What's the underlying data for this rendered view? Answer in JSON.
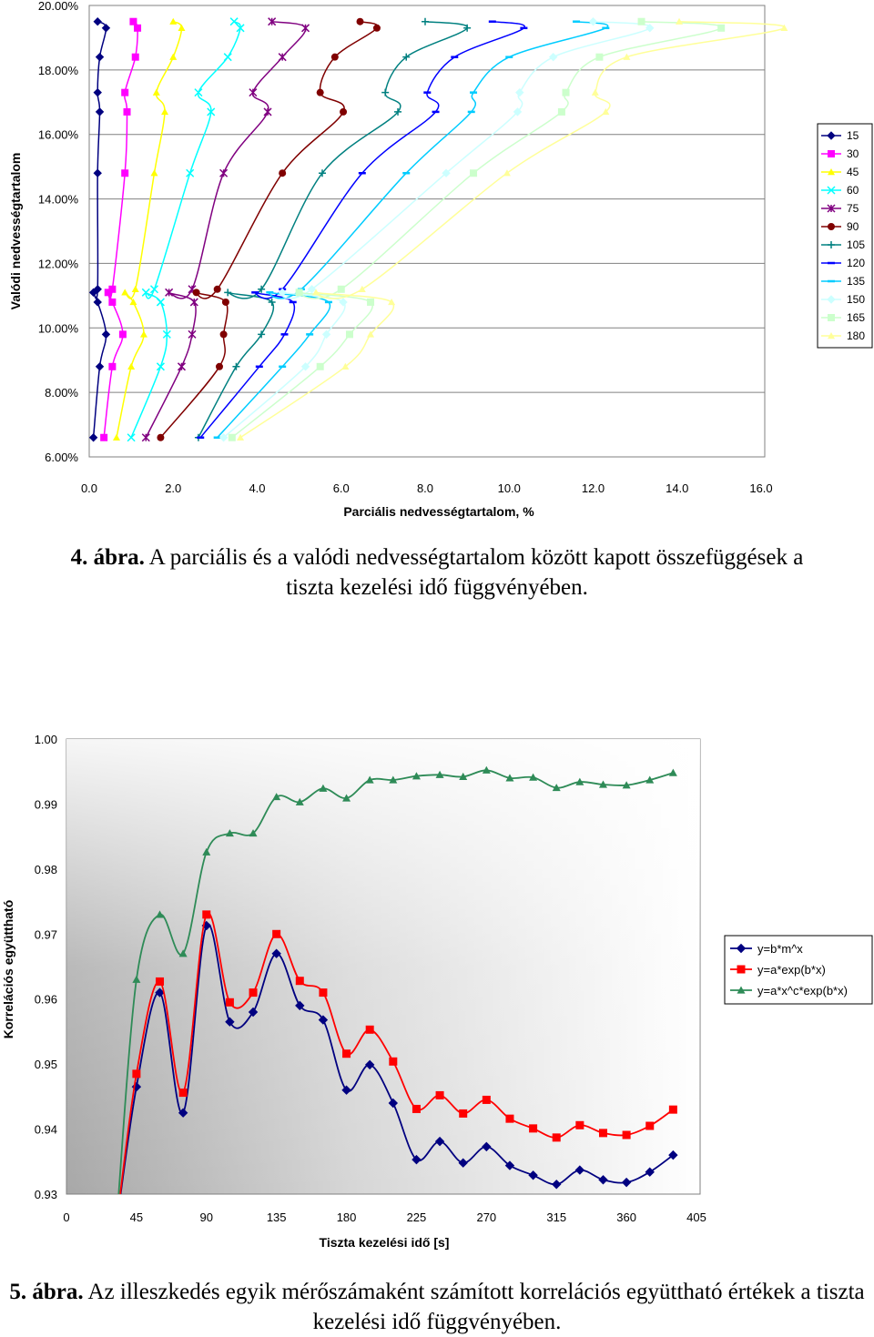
{
  "chart_data": [
    {
      "type": "scatter",
      "xlabel": "Parciális nedvességtartalom, %",
      "ylabel": "Valódi nedvességtartalom",
      "xlim": [
        0,
        16.0
      ],
      "ylim": [
        0.06,
        0.2
      ],
      "x_ticks": [
        "0.0",
        "2.0",
        "4.0",
        "6.0",
        "8.0",
        "10.0",
        "12.0",
        "14.0",
        "16.0"
      ],
      "y_ticks": [
        "6.00%",
        "8.00%",
        "10.00%",
        "12.00%",
        "14.00%",
        "16.00%",
        "18.00%",
        "20.00%"
      ],
      "legend_placement": "right",
      "series": [
        {
          "name": "15",
          "color": "#000080",
          "marker": "diamond",
          "points": [
            [
              0.1,
              0.066
            ],
            [
              0.25,
              0.088
            ],
            [
              0.4,
              0.098
            ],
            [
              0.2,
              0.108
            ],
            [
              0.1,
              0.111
            ],
            [
              0.2,
              0.112
            ],
            [
              0.2,
              0.148
            ],
            [
              0.25,
              0.167
            ],
            [
              0.2,
              0.173
            ],
            [
              0.25,
              0.184
            ],
            [
              0.4,
              0.193
            ],
            [
              0.2,
              0.195
            ]
          ]
        },
        {
          "name": "30",
          "color": "#ff00ff",
          "marker": "square",
          "points": [
            [
              0.35,
              0.066
            ],
            [
              0.55,
              0.088
            ],
            [
              0.8,
              0.098
            ],
            [
              0.55,
              0.108
            ],
            [
              0.45,
              0.111
            ],
            [
              0.55,
              0.112
            ],
            [
              0.85,
              0.148
            ],
            [
              0.9,
              0.167
            ],
            [
              0.85,
              0.173
            ],
            [
              1.1,
              0.184
            ],
            [
              1.15,
              0.193
            ],
            [
              1.05,
              0.195
            ]
          ]
        },
        {
          "name": "45",
          "color": "#ffff00",
          "marker": "triangle",
          "points": [
            [
              0.65,
              0.066
            ],
            [
              1.0,
              0.088
            ],
            [
              1.3,
              0.098
            ],
            [
              1.05,
              0.108
            ],
            [
              0.85,
              0.111
            ],
            [
              1.1,
              0.112
            ],
            [
              1.55,
              0.148
            ],
            [
              1.8,
              0.167
            ],
            [
              1.6,
              0.173
            ],
            [
              2.0,
              0.184
            ],
            [
              2.2,
              0.193
            ],
            [
              2.0,
              0.195
            ]
          ]
        },
        {
          "name": "60",
          "color": "#00ffff",
          "marker": "x",
          "points": [
            [
              1.0,
              0.066
            ],
            [
              1.7,
              0.088
            ],
            [
              1.85,
              0.098
            ],
            [
              1.7,
              0.108
            ],
            [
              1.35,
              0.111
            ],
            [
              1.55,
              0.112
            ],
            [
              2.4,
              0.148
            ],
            [
              2.9,
              0.167
            ],
            [
              2.6,
              0.173
            ],
            [
              3.3,
              0.184
            ],
            [
              3.6,
              0.193
            ],
            [
              3.45,
              0.195
            ]
          ]
        },
        {
          "name": "75",
          "color": "#800080",
          "marker": "star",
          "points": [
            [
              1.35,
              0.066
            ],
            [
              2.2,
              0.088
            ],
            [
              2.45,
              0.098
            ],
            [
              2.5,
              0.108
            ],
            [
              1.9,
              0.111
            ],
            [
              2.45,
              0.112
            ],
            [
              3.2,
              0.148
            ],
            [
              4.25,
              0.167
            ],
            [
              3.9,
              0.173
            ],
            [
              4.6,
              0.184
            ],
            [
              5.15,
              0.193
            ],
            [
              4.35,
              0.195
            ]
          ]
        },
        {
          "name": "90",
          "color": "#800000",
          "marker": "circle",
          "points": [
            [
              1.7,
              0.066
            ],
            [
              3.1,
              0.088
            ],
            [
              3.2,
              0.098
            ],
            [
              3.25,
              0.108
            ],
            [
              2.55,
              0.111
            ],
            [
              3.05,
              0.112
            ],
            [
              4.6,
              0.148
            ],
            [
              6.05,
              0.167
            ],
            [
              5.5,
              0.173
            ],
            [
              5.85,
              0.184
            ],
            [
              6.85,
              0.193
            ],
            [
              6.45,
              0.195
            ]
          ]
        },
        {
          "name": "105",
          "color": "#008080",
          "marker": "plus",
          "points": [
            [
              2.6,
              0.066
            ],
            [
              3.5,
              0.088
            ],
            [
              4.1,
              0.098
            ],
            [
              4.35,
              0.108
            ],
            [
              3.3,
              0.111
            ],
            [
              4.1,
              0.112
            ],
            [
              5.55,
              0.148
            ],
            [
              7.35,
              0.167
            ],
            [
              7.05,
              0.173
            ],
            [
              7.55,
              0.184
            ],
            [
              9.0,
              0.193
            ],
            [
              8.0,
              0.195
            ]
          ]
        },
        {
          "name": "120",
          "color": "#0000ff",
          "marker": "dash",
          "points": [
            [
              2.65,
              0.066
            ],
            [
              4.05,
              0.088
            ],
            [
              4.65,
              0.098
            ],
            [
              4.85,
              0.108
            ],
            [
              3.95,
              0.111
            ],
            [
              4.6,
              0.112
            ],
            [
              6.5,
              0.148
            ],
            [
              8.25,
              0.167
            ],
            [
              8.05,
              0.173
            ],
            [
              8.7,
              0.184
            ],
            [
              10.35,
              0.193
            ],
            [
              9.6,
              0.195
            ]
          ]
        },
        {
          "name": "135",
          "color": "#00ccff",
          "marker": "dash",
          "points": [
            [
              3.05,
              0.066
            ],
            [
              4.6,
              0.088
            ],
            [
              5.25,
              0.098
            ],
            [
              5.7,
              0.108
            ],
            [
              4.3,
              0.111
            ],
            [
              5.05,
              0.112
            ],
            [
              7.55,
              0.148
            ],
            [
              9.1,
              0.167
            ],
            [
              9.15,
              0.173
            ],
            [
              10.0,
              0.184
            ],
            [
              12.3,
              0.193
            ],
            [
              11.6,
              0.195
            ]
          ]
        },
        {
          "name": "150",
          "color": "#ccffff",
          "marker": "diamond",
          "points": [
            [
              3.2,
              0.066
            ],
            [
              5.15,
              0.088
            ],
            [
              5.65,
              0.098
            ],
            [
              6.05,
              0.108
            ],
            [
              4.6,
              0.111
            ],
            [
              5.3,
              0.112
            ],
            [
              8.5,
              0.148
            ],
            [
              10.2,
              0.167
            ],
            [
              10.25,
              0.173
            ],
            [
              11.05,
              0.184
            ],
            [
              13.35,
              0.193
            ],
            [
              12.0,
              0.195
            ]
          ]
        },
        {
          "name": "165",
          "color": "#ccffcc",
          "marker": "square",
          "points": [
            [
              3.4,
              0.066
            ],
            [
              5.5,
              0.088
            ],
            [
              6.2,
              0.098
            ],
            [
              6.7,
              0.108
            ],
            [
              5.0,
              0.111
            ],
            [
              6.0,
              0.112
            ],
            [
              9.15,
              0.148
            ],
            [
              11.25,
              0.167
            ],
            [
              11.35,
              0.173
            ],
            [
              12.15,
              0.184
            ],
            [
              15.05,
              0.193
            ],
            [
              13.15,
              0.195
            ]
          ]
        },
        {
          "name": "180",
          "color": "#ffff99",
          "marker": "triangle",
          "points": [
            [
              3.6,
              0.066
            ],
            [
              6.1,
              0.088
            ],
            [
              6.7,
              0.098
            ],
            [
              7.2,
              0.108
            ],
            [
              5.4,
              0.111
            ],
            [
              6.5,
              0.112
            ],
            [
              9.95,
              0.148
            ],
            [
              12.3,
              0.167
            ],
            [
              12.05,
              0.173
            ],
            [
              12.8,
              0.184
            ],
            [
              16.55,
              0.193
            ],
            [
              14.05,
              0.195
            ]
          ]
        }
      ]
    },
    {
      "type": "line",
      "xlabel": "Tiszta kezelési idő [s]",
      "ylabel": "Korrelációs együttható",
      "xlim": [
        0,
        405
      ],
      "ylim": [
        0.93,
        1.0
      ],
      "x_ticks": [
        "0",
        "45",
        "90",
        "135",
        "180",
        "225",
        "270",
        "315",
        "360",
        "405"
      ],
      "y_ticks": [
        "0.93",
        "0.94",
        "0.95",
        "0.96",
        "0.97",
        "0.98",
        "0.99",
        "1.00"
      ],
      "legend_placement": "right",
      "x": [
        45,
        60,
        75,
        90,
        105,
        120,
        135,
        150,
        165,
        180,
        195,
        210,
        225,
        240,
        255,
        270,
        285,
        300,
        315,
        330,
        345,
        360,
        375,
        390
      ],
      "series": [
        {
          "name": "y=b*m^x",
          "color": "#000080",
          "marker": "diamond",
          "values": [
            0.9465,
            0.961,
            0.9425,
            0.9713,
            0.9565,
            0.958,
            0.967,
            0.959,
            0.9568,
            0.946,
            0.9499,
            0.944,
            0.9353,
            0.9381,
            0.9348,
            0.9373,
            0.9344,
            0.9329,
            0.9315,
            0.9337,
            0.9322,
            0.9318,
            0.9334,
            0.936
          ]
        },
        {
          "name": "y=a*exp(b*x)",
          "color": "#ff0000",
          "marker": "square",
          "values": [
            0.9485,
            0.9627,
            0.9456,
            0.973,
            0.9595,
            0.961,
            0.97,
            0.9628,
            0.961,
            0.9516,
            0.9553,
            0.9504,
            0.9431,
            0.9452,
            0.9424,
            0.9445,
            0.9416,
            0.9401,
            0.9387,
            0.9406,
            0.9394,
            0.9391,
            0.9405,
            0.943
          ]
        },
        {
          "name": "y=a*x^c*exp(b*x)",
          "color": "#2e8b57",
          "marker": "triangle",
          "values": [
            0.963,
            0.973,
            0.967,
            0.9826,
            0.9855,
            0.9855,
            0.9911,
            0.9903,
            0.9924,
            0.9909,
            0.9937,
            0.9937,
            0.9943,
            0.9945,
            0.9942,
            0.9952,
            0.994,
            0.9941,
            0.9925,
            0.9934,
            0.993,
            0.9929,
            0.9937,
            0.9948
          ]
        }
      ]
    }
  ],
  "captions": {
    "fig4": {
      "number": "4. ábra.",
      "text": " A parciális és a valódi nedvességtartalom között kapott összefüggések a tiszta kezelési idő függvényében."
    },
    "fig5": {
      "number": "5. ábra.",
      "text": " Az illeszkedés egyik mérőszámaként számított korrelációs együttható értékek a tiszta kezelési idő függvényében."
    }
  }
}
